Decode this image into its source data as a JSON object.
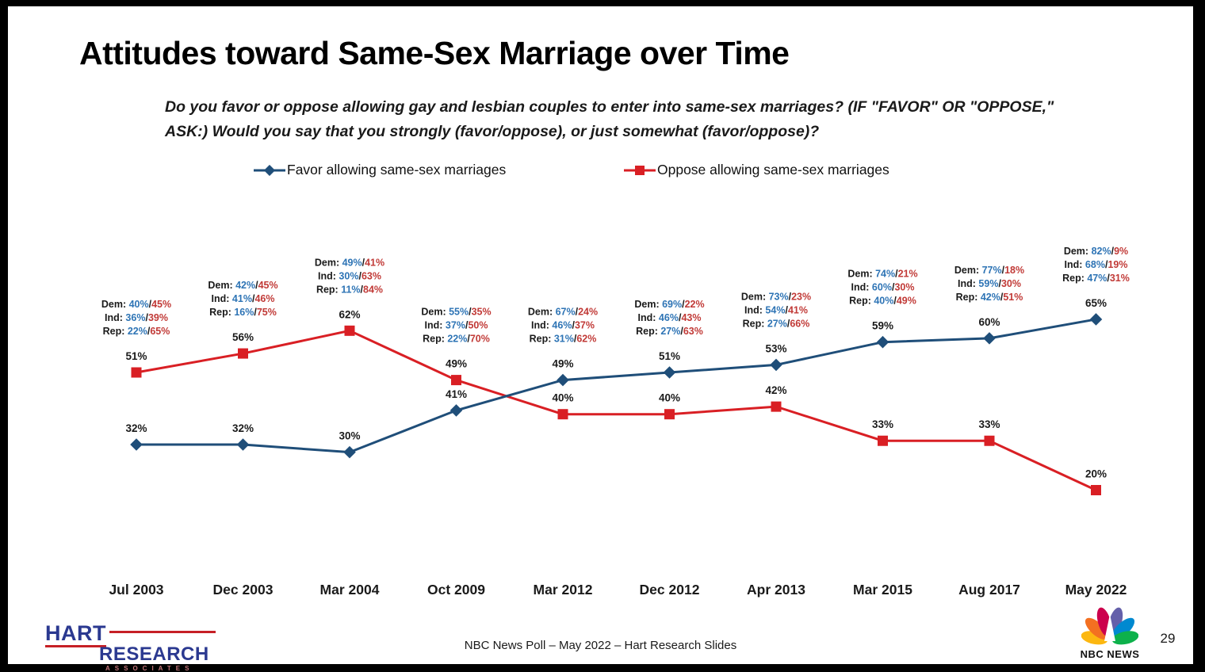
{
  "slide": {
    "title": "Attitudes toward Same-Sex Marriage over Time",
    "subtitle": "Do you favor or oppose allowing gay and lesbian couples to enter into same-sex marriages? (IF \"FAVOR\" OR \"OPPOSE,\" ASK:) Would you say that you strongly (favor/oppose), or just somewhat (favor/oppose)?",
    "footer": "NBC News Poll – May 2022 – Hart Research Slides",
    "page_number": "29"
  },
  "logos": {
    "hart_line1": "HART",
    "hart_line2": "RESEARCH",
    "hart_line3": "ASSOCIATES",
    "nbc_caption": "NBC NEWS"
  },
  "chart_data": {
    "type": "line",
    "x": [
      "Jul 2003",
      "Dec 2003",
      "Mar 2004",
      "Oct 2009",
      "Mar 2012",
      "Dec 2012",
      "Apr 2013",
      "Mar 2015",
      "Aug 2017",
      "May 2022"
    ],
    "series": [
      {
        "name": "Favor allowing same-sex marriages",
        "color": "#1f4e79",
        "label_color": "#2e74b5",
        "marker": "diamond",
        "values": [
          32,
          32,
          30,
          41,
          49,
          51,
          53,
          59,
          60,
          65
        ]
      },
      {
        "name": "Oppose allowing same-sex marriages",
        "color": "#d91f24",
        "label_color": "#c13a37",
        "marker": "square",
        "values": [
          51,
          56,
          62,
          49,
          40,
          40,
          42,
          33,
          33,
          20
        ]
      }
    ],
    "value_suffix": "%",
    "party_labels": {
      "dem": "Dem:",
      "ind": "Ind:",
      "rep": "Rep:"
    },
    "party_breakdown": [
      {
        "dem": [
          40,
          45
        ],
        "ind": [
          36,
          39
        ],
        "rep": [
          22,
          65
        ]
      },
      {
        "dem": [
          42,
          45
        ],
        "ind": [
          41,
          46
        ],
        "rep": [
          16,
          75
        ]
      },
      {
        "dem": [
          49,
          41
        ],
        "ind": [
          30,
          63
        ],
        "rep": [
          11,
          84
        ]
      },
      {
        "dem": [
          55,
          35
        ],
        "ind": [
          37,
          50
        ],
        "rep": [
          22,
          70
        ]
      },
      {
        "dem": [
          67,
          24
        ],
        "ind": [
          46,
          37
        ],
        "rep": [
          31,
          62
        ]
      },
      {
        "dem": [
          69,
          22
        ],
        "ind": [
          46,
          43
        ],
        "rep": [
          27,
          63
        ]
      },
      {
        "dem": [
          73,
          23
        ],
        "ind": [
          54,
          41
        ],
        "rep": [
          27,
          66
        ]
      },
      {
        "dem": [
          74,
          21
        ],
        "ind": [
          60,
          30
        ],
        "rep": [
          40,
          49
        ]
      },
      {
        "dem": [
          77,
          18
        ],
        "ind": [
          59,
          30
        ],
        "rep": [
          42,
          51
        ]
      },
      {
        "dem": [
          82,
          9
        ],
        "ind": [
          68,
          19
        ],
        "rep": [
          47,
          31
        ]
      }
    ],
    "ylim": [
      0,
      100
    ],
    "grid": false,
    "legend_position": "top",
    "annotation_text_color": "#1a1a1a"
  }
}
